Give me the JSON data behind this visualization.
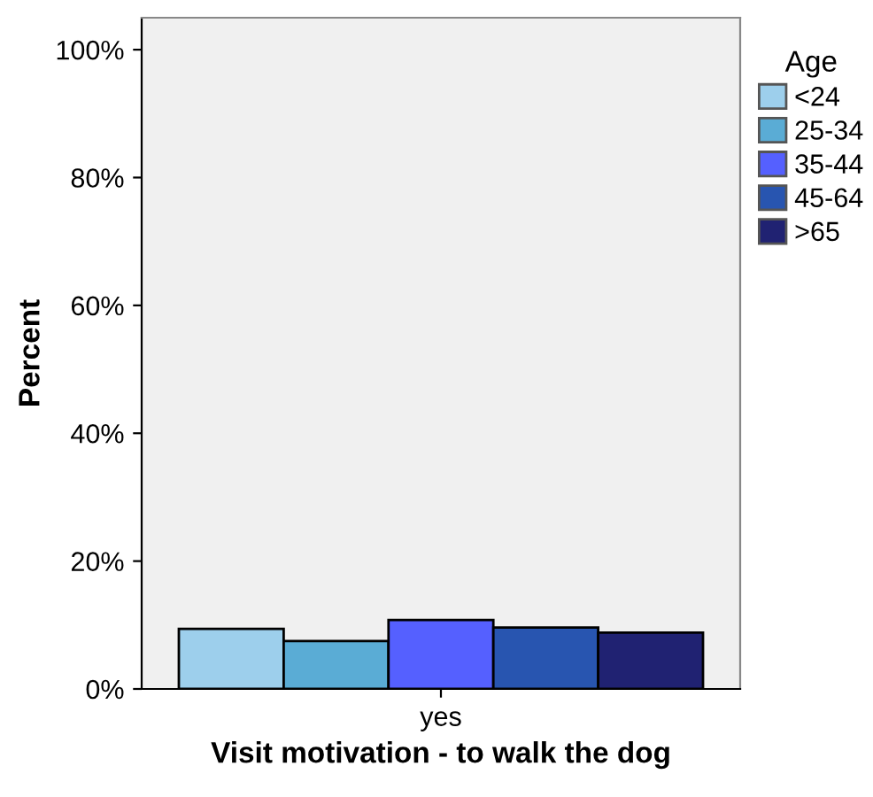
{
  "chart_data": {
    "type": "bar",
    "xlabel": "Visit motivation - to walk the dog",
    "ylabel": "Percent",
    "legend_title": "Age",
    "categories": [
      "yes"
    ],
    "series": [
      {
        "name": "<24",
        "color": "#9dcfec",
        "values": [
          9.4
        ]
      },
      {
        "name": "25-34",
        "color": "#5aacd5",
        "values": [
          7.5
        ]
      },
      {
        "name": "35-44",
        "color": "#5560ff",
        "values": [
          10.8
        ]
      },
      {
        "name": "45-64",
        "color": "#2855b0",
        "values": [
          9.6
        ]
      },
      {
        "name": ">65",
        "color": "#202272",
        "values": [
          8.8
        ]
      }
    ],
    "ylim": [
      0,
      105
    ],
    "yticks": [
      {
        "value": 0,
        "label": "0%"
      },
      {
        "value": 20,
        "label": "20%"
      },
      {
        "value": 40,
        "label": "40%"
      },
      {
        "value": 60,
        "label": "60%"
      },
      {
        "value": 80,
        "label": "80%"
      },
      {
        "value": 100,
        "label": "100%"
      }
    ],
    "grid": false,
    "legend": "top right"
  }
}
